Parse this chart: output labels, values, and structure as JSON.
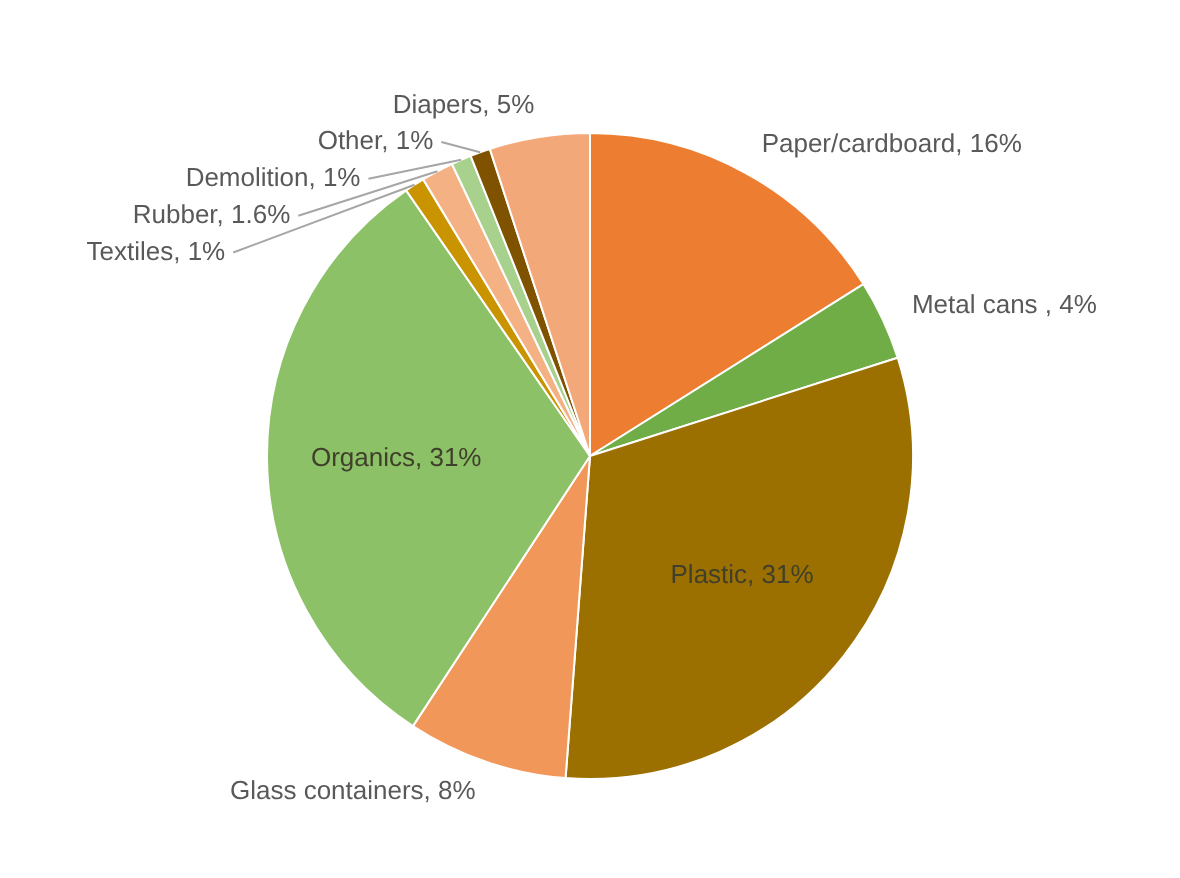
{
  "chart_data": {
    "type": "pie",
    "categories": [
      "Paper/cardboard",
      "Metal cans ",
      "Plastic",
      "Glass containers",
      "Organics",
      "Textiles",
      "Rubber",
      "Demolition",
      "Other",
      "Diapers"
    ],
    "values": [
      16,
      4,
      31,
      8,
      31,
      1,
      1.6,
      1,
      1,
      5
    ],
    "value_labels": [
      "16%",
      "4%",
      "31%",
      "8%",
      "31%",
      "1%",
      "1.6%",
      "1%",
      "1%",
      "5%"
    ],
    "colors": [
      "#ed7d31",
      "#70ad47",
      "#9c7000",
      "#f1975a",
      "#8cc168",
      "#c99400",
      "#f4b183",
      "#a9d18e",
      "#7f5200",
      "#f2a878"
    ],
    "legend": false
  }
}
